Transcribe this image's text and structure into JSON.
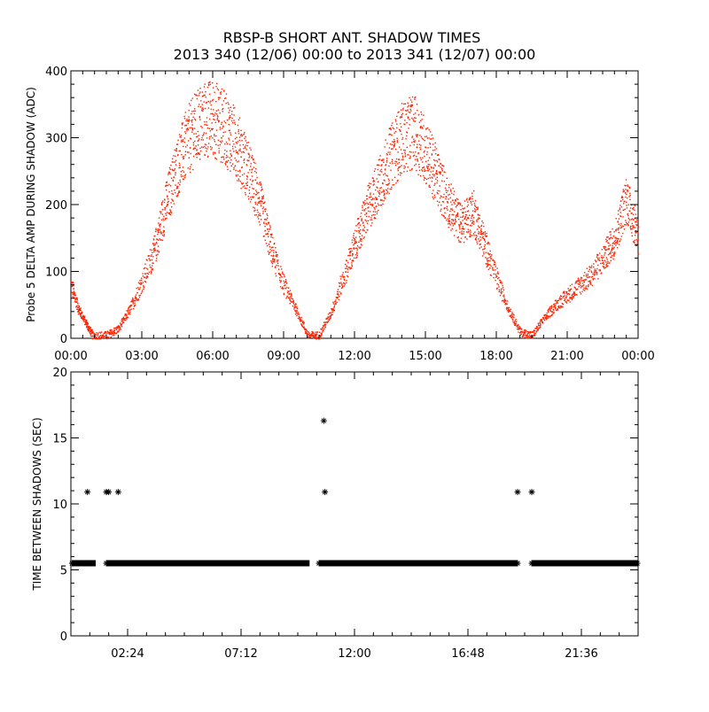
{
  "title_line1": "RBSP-B SHORT ANT. SHADOW TIMES",
  "title_line2": "2013 340 (12/06) 00:00 to 2013 341 (12/07) 00:00",
  "chart_data": [
    {
      "type": "scatter",
      "name": "top-panel",
      "ylabel": "Probe 5 DELTA AMP DURING SHADOW (ADC)",
      "xlim": [
        0,
        24
      ],
      "ylim": [
        0,
        400
      ],
      "x_ticks": [
        0,
        3,
        6,
        9,
        12,
        15,
        18,
        21,
        24
      ],
      "x_tick_labels": [
        "00:00",
        "03:00",
        "06:00",
        "09:00",
        "12:00",
        "15:00",
        "18:00",
        "21:00",
        "00:00"
      ],
      "y_ticks": [
        0,
        100,
        200,
        300,
        400
      ],
      "y_tick_labels": [
        "0",
        "100",
        "200",
        "300",
        "400"
      ],
      "color": "#ff2200",
      "envelope": [
        {
          "x": 0.0,
          "y": 80
        },
        {
          "x": 0.3,
          "y": 45
        },
        {
          "x": 0.6,
          "y": 25
        },
        {
          "x": 0.9,
          "y": 5
        },
        {
          "x": 1.5,
          "y": 5
        },
        {
          "x": 2.0,
          "y": 15
        },
        {
          "x": 2.5,
          "y": 45
        },
        {
          "x": 3.0,
          "y": 85
        },
        {
          "x": 3.5,
          "y": 130
        },
        {
          "x": 4.0,
          "y": 200
        },
        {
          "x": 4.5,
          "y": 260
        },
        {
          "x": 5.0,
          "y": 300
        },
        {
          "x": 5.5,
          "y": 325
        },
        {
          "x": 6.0,
          "y": 330
        },
        {
          "x": 6.5,
          "y": 315
        },
        {
          "x": 7.0,
          "y": 290
        },
        {
          "x": 7.5,
          "y": 250
        },
        {
          "x": 8.0,
          "y": 200
        },
        {
          "x": 8.5,
          "y": 130
        },
        {
          "x": 9.0,
          "y": 80
        },
        {
          "x": 9.5,
          "y": 45
        },
        {
          "x": 10.0,
          "y": 5
        },
        {
          "x": 10.5,
          "y": 5
        },
        {
          "x": 11.0,
          "y": 40
        },
        {
          "x": 11.5,
          "y": 90
        },
        {
          "x": 12.0,
          "y": 140
        },
        {
          "x": 12.5,
          "y": 190
        },
        {
          "x": 13.0,
          "y": 230
        },
        {
          "x": 13.5,
          "y": 270
        },
        {
          "x": 14.0,
          "y": 300
        },
        {
          "x": 14.5,
          "y": 310
        },
        {
          "x": 15.0,
          "y": 280
        },
        {
          "x": 15.5,
          "y": 240
        },
        {
          "x": 16.0,
          "y": 200
        },
        {
          "x": 16.5,
          "y": 170
        },
        {
          "x": 17.0,
          "y": 190
        },
        {
          "x": 17.5,
          "y": 140
        },
        {
          "x": 18.0,
          "y": 90
        },
        {
          "x": 18.5,
          "y": 45
        },
        {
          "x": 19.0,
          "y": 10
        },
        {
          "x": 19.5,
          "y": 5
        },
        {
          "x": 20.0,
          "y": 30
        },
        {
          "x": 20.5,
          "y": 50
        },
        {
          "x": 21.0,
          "y": 65
        },
        {
          "x": 21.5,
          "y": 80
        },
        {
          "x": 22.0,
          "y": 95
        },
        {
          "x": 22.5,
          "y": 120
        },
        {
          "x": 23.0,
          "y": 150
        },
        {
          "x": 23.5,
          "y": 210
        },
        {
          "x": 24.0,
          "y": 150
        }
      ]
    },
    {
      "type": "scatter",
      "name": "bottom-panel",
      "ylabel": "TIME BETWEEN SHADOWS (SEC)",
      "xlim": [
        0,
        24
      ],
      "ylim": [
        0,
        20
      ],
      "x_ticks": [
        2.4,
        7.2,
        12.0,
        16.8,
        21.6
      ],
      "x_tick_labels": [
        "02:24",
        "07:12",
        "12:00",
        "16:48",
        "21:36"
      ],
      "y_ticks": [
        0,
        5,
        10,
        15,
        20
      ],
      "y_tick_labels": [
        "0",
        "5",
        "10",
        "15",
        "20"
      ],
      "color": "#000000",
      "baseline": {
        "y": 5.5,
        "segments": [
          [
            0.05,
            1.05
          ],
          [
            1.5,
            10.1
          ],
          [
            10.5,
            18.9
          ],
          [
            19.5,
            24.0
          ]
        ]
      },
      "points": [
        {
          "x": 0.7,
          "y": 10.9
        },
        {
          "x": 1.5,
          "y": 10.9
        },
        {
          "x": 1.6,
          "y": 10.9
        },
        {
          "x": 2.0,
          "y": 10.9
        },
        {
          "x": 10.7,
          "y": 16.3
        },
        {
          "x": 10.75,
          "y": 10.9
        },
        {
          "x": 18.9,
          "y": 10.9
        },
        {
          "x": 19.5,
          "y": 10.9
        }
      ]
    }
  ]
}
